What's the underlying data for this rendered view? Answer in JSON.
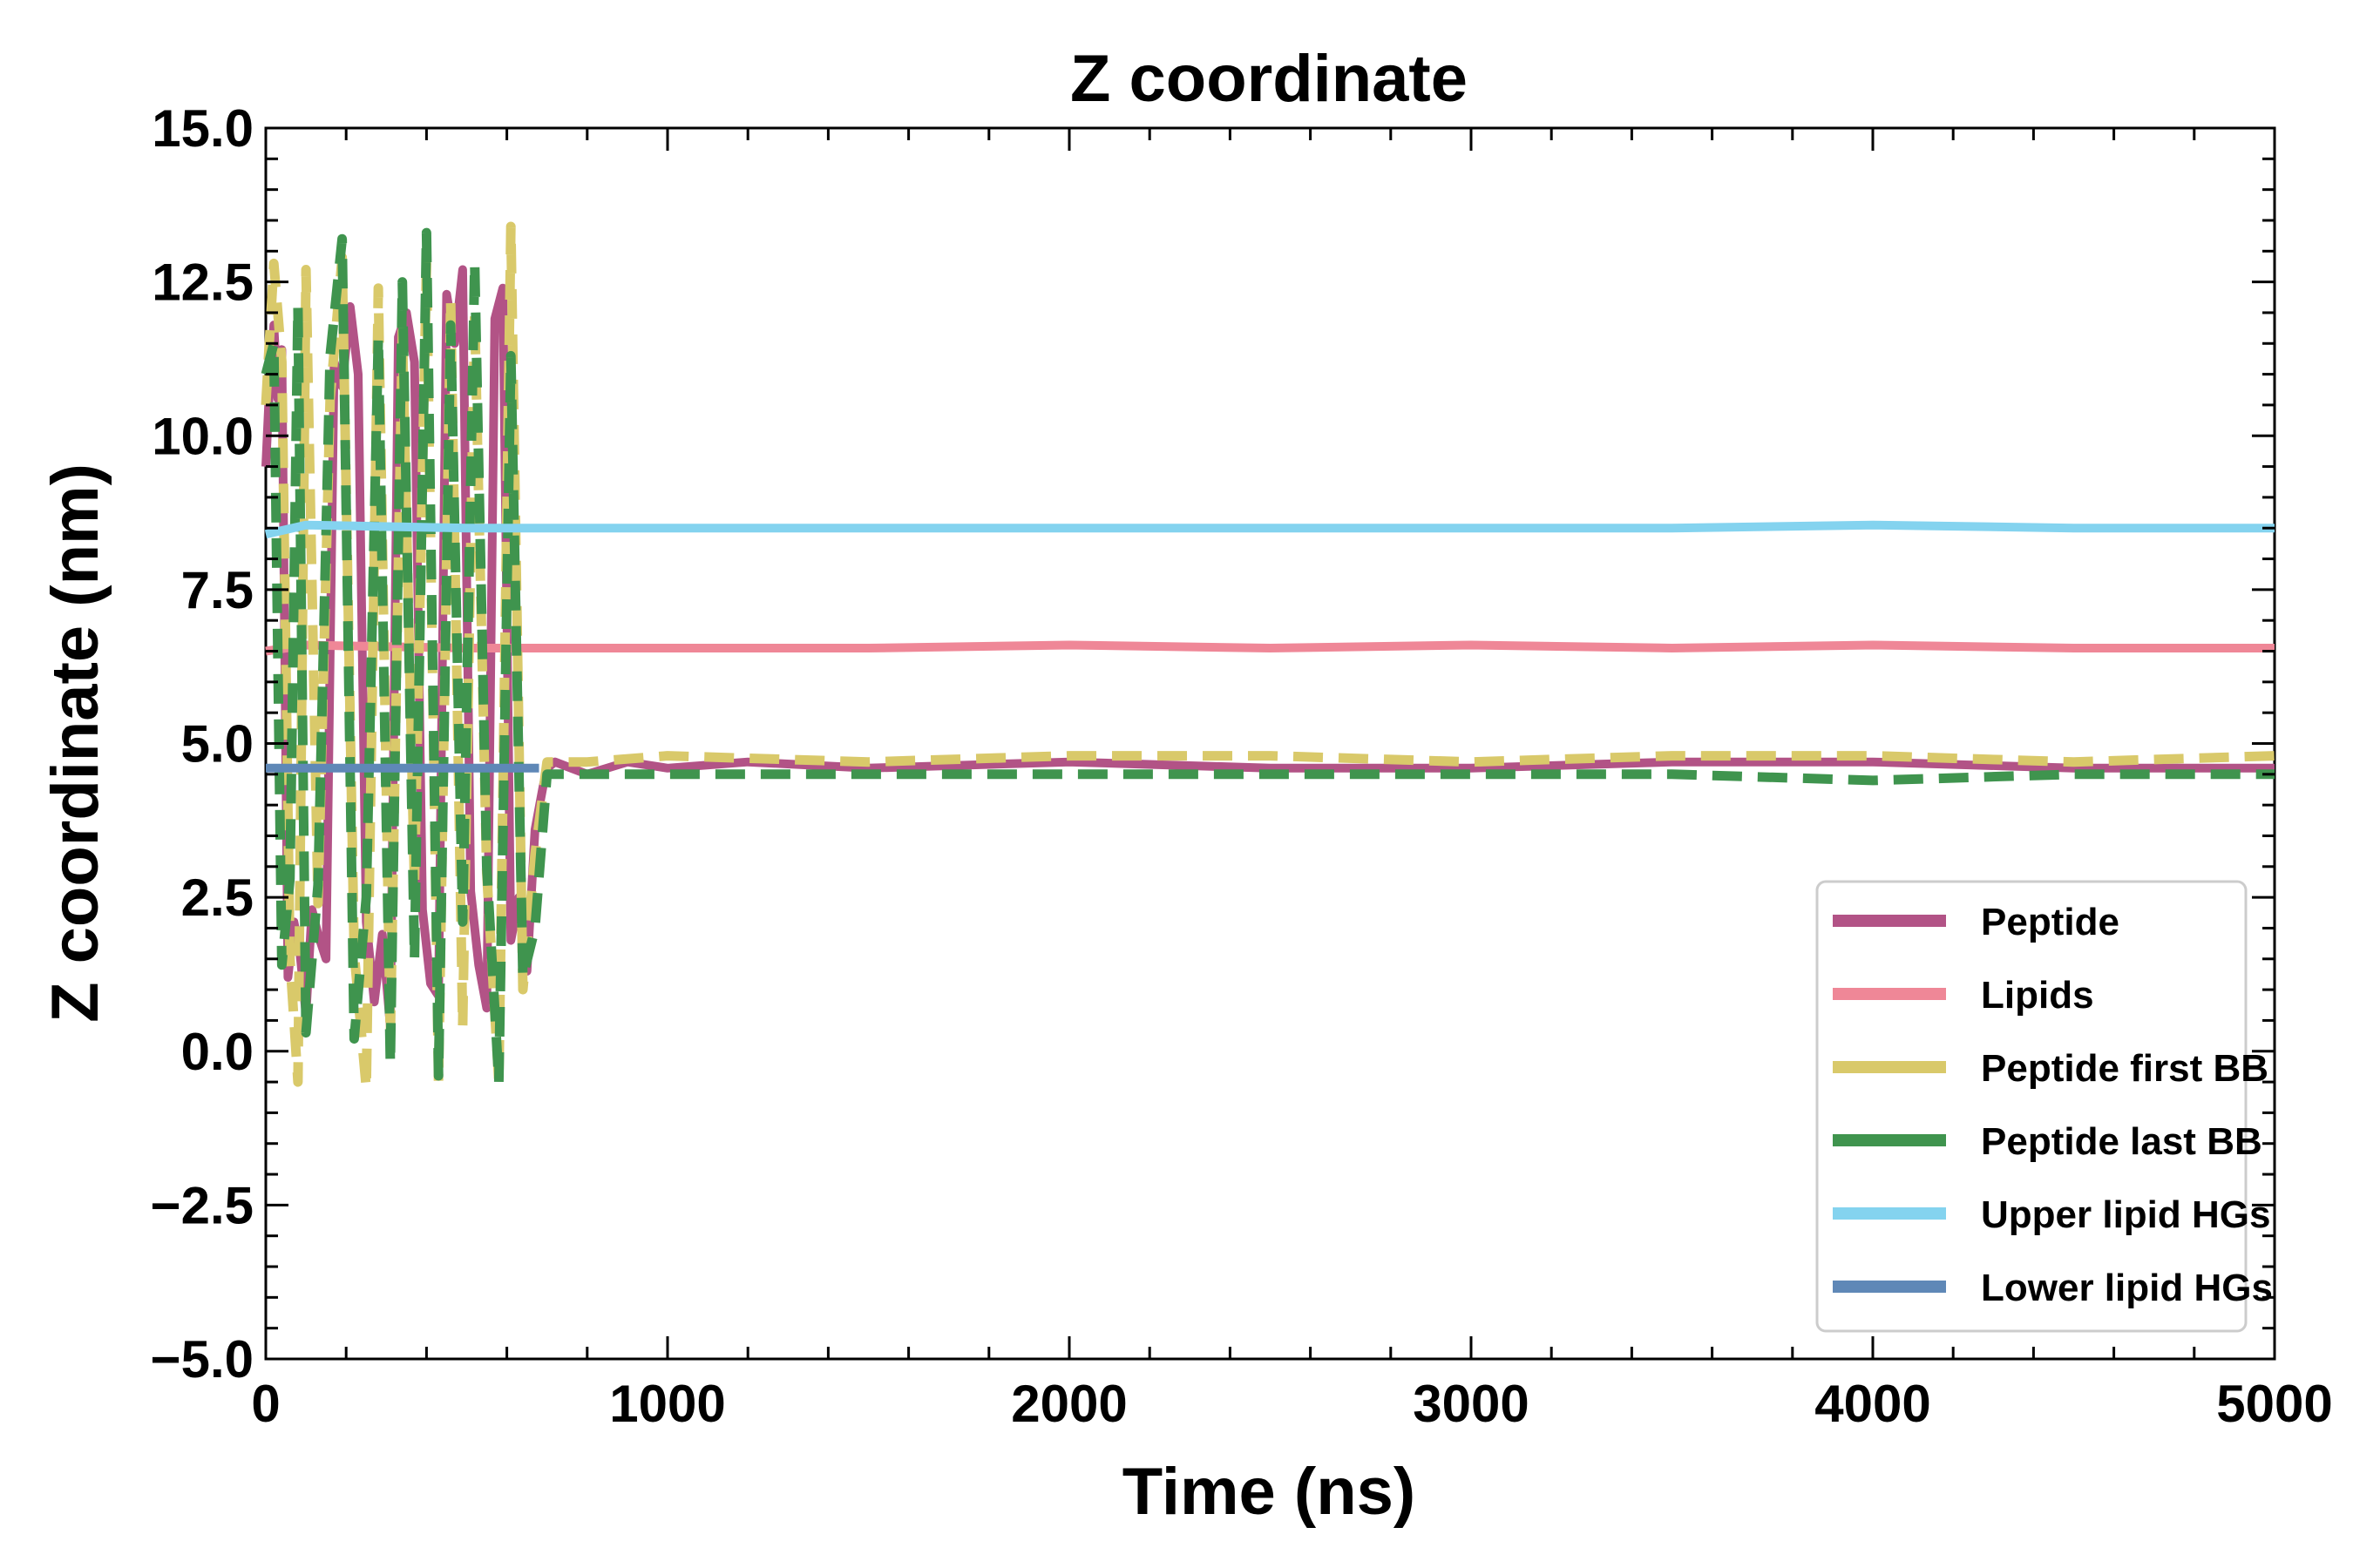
{
  "chart_data": {
    "type": "line",
    "title": "Z coordinate",
    "xlabel": "Time (ns)",
    "ylabel": "Z coordinate (nm)",
    "xlim": [
      0,
      5000
    ],
    "ylim": [
      -5.0,
      15.0
    ],
    "x_ticks": [
      0,
      1000,
      2000,
      3000,
      4000,
      5000
    ],
    "x_tick_labels": [
      "0",
      "1000",
      "2000",
      "3000",
      "4000",
      "5000"
    ],
    "y_ticks": [
      -5.0,
      -2.5,
      0.0,
      2.5,
      5.0,
      7.5,
      10.0,
      12.5,
      15.0
    ],
    "y_tick_labels": [
      "−5.0",
      "−2.5",
      "0.0",
      "2.5",
      "5.0",
      "7.5",
      "10.0",
      "12.5",
      "15.0"
    ],
    "legend_position": "lower-right",
    "grid": false,
    "series": [
      {
        "name": "Peptide",
        "color": "#b25386",
        "style": "solid",
        "x": [
          0,
          10,
          20,
          30,
          40,
          55,
          70,
          85,
          100,
          115,
          130,
          150,
          170,
          190,
          210,
          230,
          250,
          270,
          290,
          310,
          330,
          350,
          370,
          390,
          410,
          430,
          450,
          470,
          490,
          510,
          530,
          550,
          570,
          590,
          610,
          630,
          650,
          670,
          690,
          700,
          720,
          760,
          800,
          900,
          1000,
          1200,
          1500,
          2000,
          2500,
          3000,
          3500,
          4000,
          4500,
          5000
        ],
        "y": [
          9.5,
          10.9,
          11.8,
          10.6,
          11.4,
          1.2,
          2.1,
          1.6,
          0.6,
          2.3,
          1.9,
          1.5,
          11.2,
          10.8,
          12.1,
          11.0,
          2.1,
          0.8,
          1.9,
          0.4,
          11.6,
          12.0,
          11.2,
          2.3,
          1.1,
          0.9,
          12.3,
          11.5,
          12.7,
          2.6,
          1.4,
          0.7,
          11.9,
          12.4,
          1.8,
          2.5,
          1.3,
          3.6,
          4.3,
          4.6,
          4.7,
          4.6,
          4.5,
          4.7,
          4.6,
          4.7,
          4.6,
          4.7,
          4.6,
          4.6,
          4.7,
          4.7,
          4.6,
          4.6
        ]
      },
      {
        "name": "Lipids",
        "color": "#ef8797",
        "style": "solid",
        "x": [
          0,
          100,
          500,
          1000,
          1500,
          2000,
          2500,
          3000,
          3500,
          4000,
          4500,
          5000
        ],
        "y": [
          6.5,
          6.6,
          6.55,
          6.55,
          6.55,
          6.6,
          6.55,
          6.6,
          6.55,
          6.6,
          6.55,
          6.55
        ]
      },
      {
        "name": "Peptide first BB",
        "color": "#d9c96a",
        "style": "dashed",
        "x": [
          0,
          20,
          40,
          60,
          80,
          100,
          130,
          160,
          190,
          220,
          250,
          280,
          310,
          340,
          370,
          400,
          430,
          460,
          490,
          520,
          550,
          580,
          610,
          640,
          670,
          700,
          800,
          1000,
          1500,
          2000,
          2500,
          3000,
          3500,
          4000,
          4500,
          5000
        ],
        "y": [
          10.5,
          12.8,
          11.2,
          1.5,
          -0.5,
          12.7,
          2.4,
          10.6,
          12.9,
          1.6,
          -0.6,
          12.4,
          0.2,
          11.7,
          2.7,
          12.8,
          -0.5,
          12.2,
          0.4,
          12.0,
          2.9,
          -0.5,
          13.4,
          1.0,
          3.2,
          4.7,
          4.7,
          4.8,
          4.7,
          4.8,
          4.8,
          4.7,
          4.8,
          4.8,
          4.7,
          4.8
        ]
      },
      {
        "name": "Peptide last BB",
        "color": "#3f944e",
        "style": "dashed",
        "x": [
          0,
          20,
          40,
          60,
          80,
          100,
          130,
          160,
          190,
          220,
          250,
          280,
          310,
          340,
          370,
          400,
          430,
          460,
          490,
          520,
          550,
          580,
          610,
          640,
          670,
          700,
          800,
          1000,
          1500,
          2000,
          2500,
          3000,
          3500,
          4000,
          4500,
          5000
        ],
        "y": [
          11.0,
          11.5,
          1.4,
          2.8,
          12.1,
          0.3,
          2.7,
          11.3,
          13.2,
          0.2,
          2.5,
          11.6,
          -0.2,
          12.5,
          1.5,
          13.3,
          -0.4,
          11.8,
          2.1,
          12.8,
          3.0,
          -0.5,
          11.3,
          1.2,
          2.0,
          4.5,
          4.5,
          4.5,
          4.5,
          4.5,
          4.5,
          4.5,
          4.5,
          4.4,
          4.5,
          4.5
        ]
      },
      {
        "name": "Upper lipid HGs",
        "color": "#84d3ef",
        "style": "solid",
        "x": [
          0,
          100,
          500,
          1000,
          1500,
          2000,
          2500,
          3000,
          3500,
          4000,
          4500,
          5000
        ],
        "y": [
          8.4,
          8.55,
          8.5,
          8.5,
          8.5,
          8.5,
          8.5,
          8.5,
          8.5,
          8.55,
          8.5,
          8.5
        ]
      },
      {
        "name": "Lower lipid HGs",
        "color": "#5f88b7",
        "style": "solid",
        "x": [
          0,
          100,
          200,
          300,
          400,
          500,
          600,
          680
        ],
        "y": [
          4.6,
          4.6,
          4.6,
          4.6,
          4.6,
          4.6,
          4.6,
          4.6
        ]
      }
    ]
  }
}
